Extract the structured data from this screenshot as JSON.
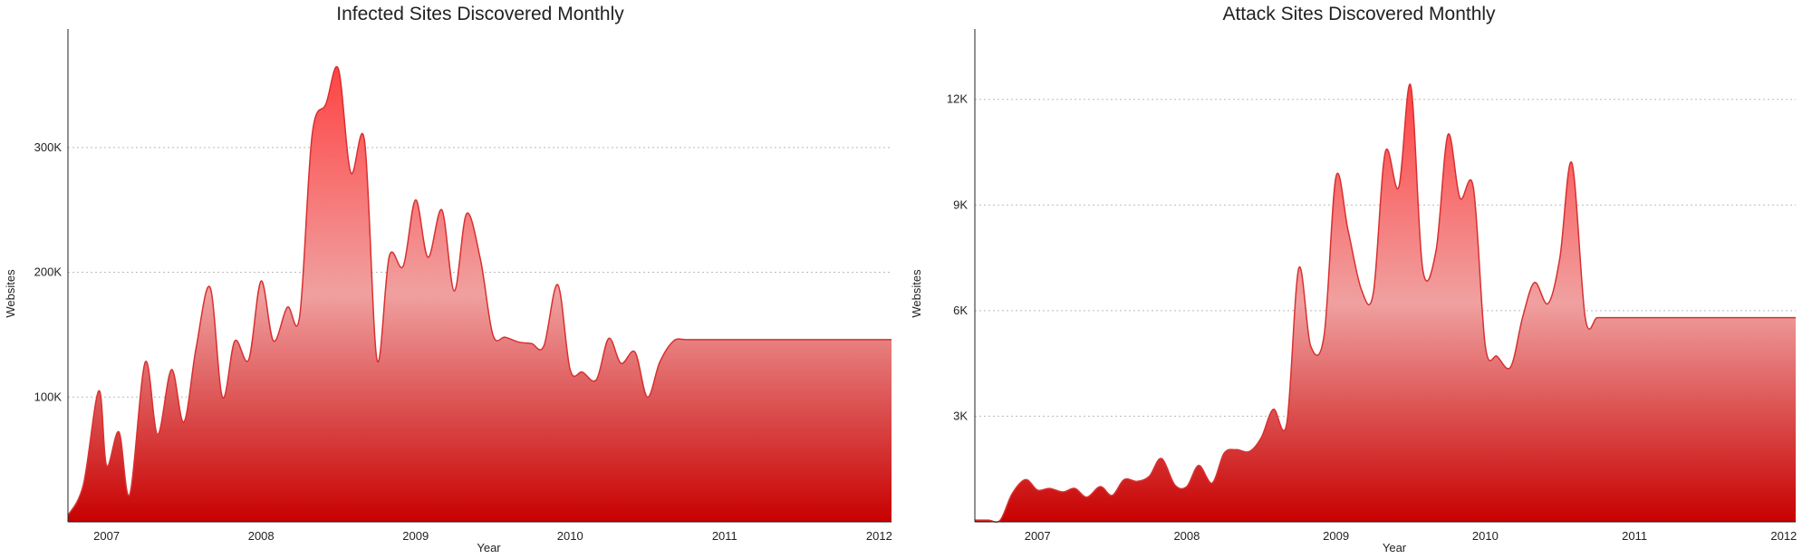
{
  "chart_data": [
    {
      "type": "area",
      "title": "Infected Sites Discovered Monthly",
      "xlabel": "Year",
      "ylabel": "Websites",
      "x_ticks": [
        "2007",
        "2008",
        "2009",
        "2010",
        "2011",
        "2012"
      ],
      "y_ticks": [
        {
          "value": 100000,
          "label": "100K"
        },
        {
          "value": 200000,
          "label": "200K"
        },
        {
          "value": 300000,
          "label": "300K"
        }
      ],
      "xlim": [
        2006.75,
        2012.08
      ],
      "ylim": [
        0,
        395000
      ],
      "grid": "horizontal-dotted",
      "fill_colors": {
        "top": "#ff4444",
        "middle": "#f0a0a0",
        "bottom": "#c80000"
      },
      "line_color": "#d83030",
      "x": [
        2006.75,
        2006.85,
        2006.95,
        2007.0,
        2007.08,
        2007.15,
        2007.25,
        2007.33,
        2007.42,
        2007.5,
        2007.58,
        2007.67,
        2007.75,
        2007.83,
        2007.92,
        2008.0,
        2008.08,
        2008.17,
        2008.25,
        2008.33,
        2008.42,
        2008.5,
        2008.58,
        2008.67,
        2008.75,
        2008.83,
        2008.92,
        2009.0,
        2009.08,
        2009.17,
        2009.25,
        2009.33,
        2009.42,
        2009.5,
        2009.58,
        2009.67,
        2009.75,
        2009.83,
        2009.92,
        2010.0,
        2010.08,
        2010.17,
        2010.25,
        2010.33,
        2010.42,
        2010.5,
        2010.58,
        2010.67,
        2010.75,
        2010.83,
        2010.92,
        2011.0,
        2011.08,
        2011.17,
        2011.25,
        2011.33,
        2011.42,
        2011.5,
        2011.58,
        2011.67,
        2011.75,
        2011.83,
        2011.92,
        2012.0,
        2012.08
      ],
      "values": [
        5000,
        30000,
        105000,
        45000,
        72000,
        22000,
        128000,
        70000,
        122000,
        80000,
        140000,
        188000,
        100000,
        145000,
        130000,
        193000,
        145000,
        172000,
        165000,
        310000,
        335000,
        363000,
        280000,
        305000,
        130000,
        213000,
        205000,
        258000,
        212000,
        250000,
        185000,
        247000,
        210000,
        150000,
        148000,
        144000,
        143000,
        141000,
        190000,
        122000,
        120000,
        114000,
        147000,
        127000,
        136000,
        100000,
        128000,
        145000,
        146000,
        146000,
        146000,
        146000,
        146000,
        146000,
        146000,
        146000,
        146000,
        146000,
        146000,
        146000,
        146000,
        146000,
        146000,
        146000,
        146000
      ]
    },
    {
      "type": "area",
      "title": "Attack Sites Discovered Monthly",
      "xlabel": "Year",
      "ylabel": "Websites",
      "x_ticks": [
        "2007",
        "2008",
        "2009",
        "2010",
        "2011",
        "2012"
      ],
      "y_ticks": [
        {
          "value": 3000,
          "label": "3K"
        },
        {
          "value": 6000,
          "label": "6K"
        },
        {
          "value": 9000,
          "label": "9K"
        },
        {
          "value": 12000,
          "label": "12K"
        }
      ],
      "xlim": [
        2006.58,
        2012.08
      ],
      "ylim": [
        0,
        14000
      ],
      "grid": "horizontal-dotted",
      "fill_colors": {
        "top": "#ff4444",
        "middle": "#f0a0a0",
        "bottom": "#c80000"
      },
      "line_color": "#d83030",
      "x": [
        2006.58,
        2006.67,
        2006.75,
        2006.83,
        2006.92,
        2007.0,
        2007.08,
        2007.17,
        2007.25,
        2007.33,
        2007.42,
        2007.5,
        2007.58,
        2007.67,
        2007.75,
        2007.83,
        2007.92,
        2008.0,
        2008.08,
        2008.17,
        2008.25,
        2008.33,
        2008.42,
        2008.5,
        2008.58,
        2008.67,
        2008.75,
        2008.83,
        2008.92,
        2009.0,
        2009.08,
        2009.17,
        2009.25,
        2009.33,
        2009.42,
        2009.5,
        2009.58,
        2009.67,
        2009.75,
        2009.83,
        2009.92,
        2010.0,
        2010.08,
        2010.17,
        2010.25,
        2010.33,
        2010.42,
        2010.5,
        2010.58,
        2010.67,
        2010.75,
        2010.83,
        2010.92,
        2011.0,
        2011.08,
        2011.17,
        2011.25,
        2011.33,
        2011.42,
        2011.5,
        2011.58,
        2011.67,
        2011.75,
        2011.83,
        2011.92,
        2012.0,
        2012.08
      ],
      "values": [
        50,
        50,
        50,
        800,
        1200,
        900,
        950,
        850,
        950,
        700,
        1000,
        750,
        1200,
        1150,
        1300,
        1800,
        1050,
        1000,
        1600,
        1100,
        1950,
        2050,
        2000,
        2400,
        3200,
        2800,
        7200,
        5000,
        5300,
        9800,
        8300,
        6600,
        6500,
        10500,
        9500,
        12400,
        7200,
        7700,
        11000,
        9200,
        9500,
        5000,
        4700,
        4400,
        5800,
        6800,
        6200,
        7500,
        10200,
        5800,
        5800,
        5800,
        5800,
        5800,
        5800,
        5800,
        5800,
        5800,
        5800,
        5800,
        5800,
        5800,
        5800,
        5800,
        5800,
        5800,
        5800
      ]
    }
  ]
}
